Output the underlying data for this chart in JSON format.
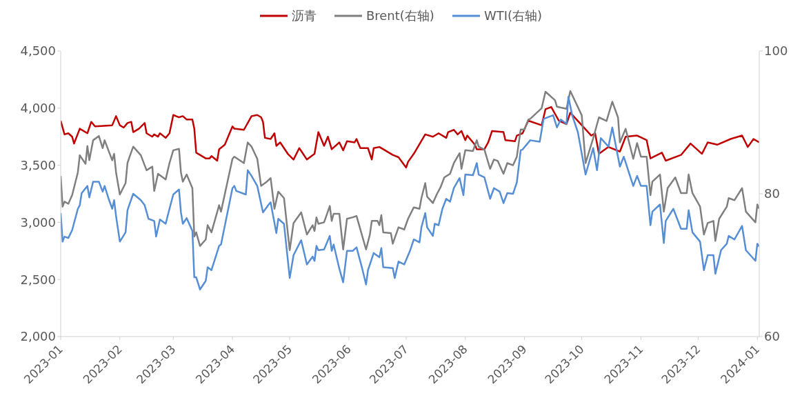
{
  "chart_data": {
    "type": "line",
    "xlim": [
      "2023-01-01",
      "2024-01-02"
    ],
    "xticks": [
      "2023-01",
      "2023-02",
      "2023-03",
      "2023-04",
      "2023-05",
      "2023-06",
      "2023-07",
      "2023-08",
      "2023-09",
      "2023-10",
      "2023-11",
      "2023-12",
      "2024-01"
    ],
    "ylim": [
      2000,
      4500
    ],
    "yticks": [
      {
        "value": 2000,
        "label": "2,000"
      },
      {
        "value": 2500,
        "label": "2,500"
      },
      {
        "value": 3000,
        "label": "3,000"
      },
      {
        "value": 3500,
        "label": "3,500"
      },
      {
        "value": 4000,
        "label": "4,000"
      },
      {
        "value": 4500,
        "label": "4,500"
      }
    ],
    "y2lim": [
      60,
      100
    ],
    "y2ticks": [
      60,
      80,
      100
    ],
    "grid": false,
    "legend": "top",
    "marker": "none",
    "line_style": "solid",
    "series": [
      {
        "name": "沥青",
        "color": "#c00000",
        "x": [
          "2023-01-01",
          "2023-01-03",
          "2023-01-05",
          "2023-01-07",
          "2023-01-08",
          "2023-01-11",
          "2023-01-15",
          "2023-01-17",
          "2023-01-19",
          "2023-01-28",
          "2023-01-30",
          "2023-02-01",
          "2023-02-03",
          "2023-02-05",
          "2023-02-07",
          "2023-02-08",
          "2023-02-11",
          "2023-02-14",
          "2023-02-15",
          "2023-02-18",
          "2023-02-19",
          "2023-02-21",
          "2023-02-22",
          "2023-02-25",
          "2023-02-27",
          "2023-03-01",
          "2023-03-04",
          "2023-03-06",
          "2023-03-08",
          "2023-03-11",
          "2023-03-12",
          "2023-03-13",
          "2023-03-18",
          "2023-03-20",
          "2023-03-21",
          "2023-03-24",
          "2023-03-25",
          "2023-03-28",
          "2023-04-01",
          "2023-04-02",
          "2023-04-07",
          "2023-04-11",
          "2023-04-14",
          "2023-04-16",
          "2023-04-17",
          "2023-04-18",
          "2023-04-21",
          "2023-04-23",
          "2023-04-24",
          "2023-04-26",
          "2023-04-30",
          "2023-05-03",
          "2023-05-06",
          "2023-05-08",
          "2023-05-10",
          "2023-05-14",
          "2023-05-16",
          "2023-05-19",
          "2023-05-21",
          "2023-05-23",
          "2023-05-27",
          "2023-05-29",
          "2023-05-31",
          "2023-06-04",
          "2023-06-05",
          "2023-06-07",
          "2023-06-11",
          "2023-06-13",
          "2023-06-14",
          "2023-06-17",
          "2023-06-24",
          "2023-06-27",
          "2023-07-01",
          "2023-07-02",
          "2023-07-05",
          "2023-07-11",
          "2023-07-15",
          "2023-07-18",
          "2023-07-22",
          "2023-07-23",
          "2023-07-26",
          "2023-07-28",
          "2023-07-30",
          "2023-08-01",
          "2023-08-02",
          "2023-08-06",
          "2023-08-07",
          "2023-08-11",
          "2023-08-13",
          "2023-08-15",
          "2023-08-21",
          "2023-08-22",
          "2023-08-27",
          "2023-08-28",
          "2023-08-31",
          "2023-09-03",
          "2023-09-10",
          "2023-09-12",
          "2023-09-15",
          "2023-09-19",
          "2023-09-23",
          "2023-09-25",
          "2023-10-06",
          "2023-10-08",
          "2023-10-10",
          "2023-10-15",
          "2023-10-21",
          "2023-10-24",
          "2023-10-30",
          "2023-11-04",
          "2023-11-06",
          "2023-11-12",
          "2023-11-14",
          "2023-11-22",
          "2023-11-27",
          "2023-12-03",
          "2023-12-06",
          "2023-12-11",
          "2023-12-18",
          "2023-12-24",
          "2023-12-27",
          "2023-12-30",
          "2024-01-02"
        ],
        "values": [
          3890,
          3770,
          3780,
          3750,
          3690,
          3820,
          3780,
          3880,
          3840,
          3850,
          3930,
          3850,
          3830,
          3870,
          3880,
          3790,
          3820,
          3870,
          3780,
          3750,
          3770,
          3750,
          3780,
          3740,
          3780,
          3940,
          3920,
          3930,
          3900,
          3900,
          3820,
          3610,
          3560,
          3560,
          3580,
          3540,
          3640,
          3680,
          3840,
          3820,
          3810,
          3930,
          3940,
          3920,
          3880,
          3740,
          3730,
          3780,
          3670,
          3700,
          3600,
          3550,
          3650,
          3600,
          3550,
          3600,
          3790,
          3670,
          3750,
          3640,
          3700,
          3630,
          3710,
          3700,
          3730,
          3650,
          3650,
          3550,
          3650,
          3660,
          3590,
          3570,
          3480,
          3530,
          3600,
          3770,
          3750,
          3780,
          3740,
          3790,
          3810,
          3770,
          3800,
          3720,
          3760,
          3680,
          3640,
          3640,
          3700,
          3800,
          3790,
          3720,
          3710,
          3760,
          3780,
          3890,
          3850,
          3990,
          4010,
          3890,
          3860,
          3960,
          3760,
          3780,
          3600,
          3660,
          3620,
          3750,
          3760,
          3720,
          3560,
          3610,
          3540,
          3590,
          3690,
          3600,
          3700,
          3680,
          3730,
          3760,
          3660,
          3730,
          3700
        ]
      },
      {
        "name": "Brent(右轴)",
        "color": "#7f7f7f",
        "axis": "y2",
        "x": [
          "2023-01-01",
          "2023-01-02",
          "2023-01-03",
          "2023-01-05",
          "2023-01-07",
          "2023-01-10",
          "2023-01-11",
          "2023-01-14",
          "2023-01-15",
          "2023-01-16",
          "2023-01-18",
          "2023-01-21",
          "2023-01-23",
          "2023-01-24",
          "2023-01-26",
          "2023-01-28",
          "2023-01-29",
          "2023-01-30",
          "2023-02-01",
          "2023-02-04",
          "2023-02-05",
          "2023-02-06",
          "2023-02-08",
          "2023-02-12",
          "2023-02-15",
          "2023-02-18",
          "2023-02-19",
          "2023-02-21",
          "2023-02-25",
          "2023-02-27",
          "2023-03-01",
          "2023-03-04",
          "2023-03-05",
          "2023-03-06",
          "2023-03-08",
          "2023-03-11",
          "2023-03-12",
          "2023-03-13",
          "2023-03-15",
          "2023-03-18",
          "2023-03-19",
          "2023-03-21",
          "2023-03-25",
          "2023-03-26",
          "2023-04-01",
          "2023-04-02",
          "2023-04-07",
          "2023-04-09",
          "2023-04-11",
          "2023-04-14",
          "2023-04-16",
          "2023-04-19",
          "2023-04-21",
          "2023-04-23",
          "2023-04-25",
          "2023-04-28",
          "2023-05-01",
          "2023-05-03",
          "2023-05-07",
          "2023-05-10",
          "2023-05-13",
          "2023-05-14",
          "2023-05-15",
          "2023-05-16",
          "2023-05-19",
          "2023-05-22",
          "2023-05-23",
          "2023-05-24",
          "2023-05-27",
          "2023-05-29",
          "2023-05-31",
          "2023-06-03",
          "2023-06-05",
          "2023-06-10",
          "2023-06-12",
          "2023-06-13",
          "2023-06-16",
          "2023-06-17",
          "2023-06-18",
          "2023-06-19",
          "2023-06-23",
          "2023-06-24",
          "2023-06-27",
          "2023-06-30",
          "2023-07-02",
          "2023-07-05",
          "2023-07-08",
          "2023-07-09",
          "2023-07-11",
          "2023-07-12",
          "2023-07-15",
          "2023-07-17",
          "2023-07-19",
          "2023-07-21",
          "2023-07-24",
          "2023-07-26",
          "2023-07-29",
          "2023-07-30",
          "2023-08-01",
          "2023-08-05",
          "2023-08-07",
          "2023-08-08",
          "2023-08-11",
          "2023-08-14",
          "2023-08-16",
          "2023-08-18",
          "2023-08-21",
          "2023-08-23",
          "2023-08-26",
          "2023-08-28",
          "2023-08-30",
          "2023-09-01",
          "2023-09-03",
          "2023-09-04",
          "2023-09-10",
          "2023-09-12",
          "2023-09-17",
          "2023-09-18",
          "2023-09-23",
          "2023-09-25",
          "2023-10-01",
          "2023-10-03",
          "2023-10-07",
          "2023-10-10",
          "2023-10-14",
          "2023-10-17",
          "2023-10-20",
          "2023-10-21",
          "2023-10-24",
          "2023-10-28",
          "2023-10-30",
          "2023-11-01",
          "2023-11-04",
          "2023-11-06",
          "2023-11-07",
          "2023-11-11",
          "2023-11-13",
          "2023-11-15",
          "2023-11-19",
          "2023-11-22",
          "2023-11-25",
          "2023-11-26",
          "2023-11-28",
          "2023-12-02",
          "2023-12-04",
          "2023-12-06",
          "2023-12-09",
          "2023-12-10",
          "2023-12-12",
          "2023-12-16",
          "2023-12-17",
          "2023-12-20",
          "2023-12-24",
          "2023-12-26",
          "2023-12-31",
          "2024-01-01",
          "2024-01-02"
        ],
        "values": [
          82.5,
          78.2,
          78.9,
          78.6,
          79.8,
          83.0,
          85.4,
          84.2,
          86.7,
          84.7,
          87.5,
          88.1,
          86.4,
          87.5,
          86.1,
          84.7,
          85.6,
          83.0,
          79.9,
          81.5,
          84.3,
          85.1,
          86.6,
          85.4,
          83.3,
          83.8,
          80.4,
          82.8,
          82.0,
          84.3,
          86.1,
          86.3,
          83.0,
          81.7,
          82.7,
          80.8,
          74.0,
          74.6,
          72.7,
          73.6,
          75.6,
          74.6,
          78.4,
          77.5,
          84.9,
          85.2,
          84.3,
          87.2,
          86.6,
          84.9,
          81.1,
          81.7,
          82.2,
          77.9,
          80.3,
          79.4,
          72.1,
          75.9,
          77.4,
          74.3,
          75.6,
          74.8,
          76.7,
          75.8,
          76.0,
          78.3,
          76.2,
          77.2,
          77.2,
          72.2,
          76.5,
          76.7,
          76.9,
          72.2,
          74.3,
          76.2,
          76.2,
          75.6,
          77.0,
          74.6,
          74.5,
          73.0,
          75.3,
          75.0,
          76.5,
          78.1,
          77.9,
          79.4,
          81.5,
          79.6,
          78.7,
          79.9,
          80.9,
          82.3,
          82.8,
          84.3,
          85.7,
          83.5,
          86.1,
          86.0,
          87.5,
          86.6,
          86.2,
          83.5,
          84.8,
          84.6,
          82.8,
          84.3,
          84.0,
          85.2,
          89.0,
          89.0,
          90.4,
          90.5,
          92.0,
          94.3,
          93.1,
          92.2,
          91.9,
          94.4,
          91.0,
          84.3,
          87.8,
          90.7,
          90.2,
          92.9,
          90.7,
          87.2,
          89.1,
          84.9,
          87.1,
          85.2,
          85.2,
          79.8,
          81.7,
          82.7,
          77.5,
          80.8,
          82.3,
          80.1,
          80.1,
          82.7,
          80.1,
          78.2,
          74.3,
          75.9,
          76.2,
          73.4,
          76.5,
          78.2,
          79.4,
          79.1,
          80.8,
          77.5,
          76.0,
          78.5,
          77.9
        ]
      },
      {
        "name": "WTI(右轴)",
        "color": "#558ed5",
        "axis": "y2",
        "x": [
          "2023-01-01",
          "2023-01-02",
          "2023-01-03",
          "2023-01-05",
          "2023-01-07",
          "2023-01-10",
          "2023-01-11",
          "2023-01-12",
          "2023-01-15",
          "2023-01-16",
          "2023-01-18",
          "2023-01-21",
          "2023-01-23",
          "2023-01-24",
          "2023-01-26",
          "2023-01-28",
          "2023-01-29",
          "2023-01-30",
          "2023-02-01",
          "2023-02-04",
          "2023-02-05",
          "2023-02-06",
          "2023-02-08",
          "2023-02-12",
          "2023-02-14",
          "2023-02-16",
          "2023-02-19",
          "2023-02-20",
          "2023-02-22",
          "2023-02-25",
          "2023-02-27",
          "2023-03-01",
          "2023-03-04",
          "2023-03-05",
          "2023-03-06",
          "2023-03-08",
          "2023-03-11",
          "2023-03-12",
          "2023-03-13",
          "2023-03-15",
          "2023-03-18",
          "2023-03-19",
          "2023-03-21",
          "2023-03-25",
          "2023-03-26",
          "2023-04-01",
          "2023-04-02",
          "2023-04-03",
          "2023-04-08",
          "2023-04-09",
          "2023-04-11",
          "2023-04-14",
          "2023-04-17",
          "2023-04-20",
          "2023-04-21",
          "2023-04-24",
          "2023-04-25",
          "2023-04-28",
          "2023-05-01",
          "2023-05-03",
          "2023-05-07",
          "2023-05-10",
          "2023-05-13",
          "2023-05-14",
          "2023-05-15",
          "2023-05-16",
          "2023-05-19",
          "2023-05-22",
          "2023-05-23",
          "2023-05-24",
          "2023-05-27",
          "2023-05-29",
          "2023-05-31",
          "2023-06-03",
          "2023-06-05",
          "2023-06-08",
          "2023-06-10",
          "2023-06-11",
          "2023-06-13",
          "2023-06-14",
          "2023-06-17",
          "2023-06-18",
          "2023-06-19",
          "2023-06-24",
          "2023-06-25",
          "2023-06-27",
          "2023-06-30",
          "2023-07-03",
          "2023-07-05",
          "2023-07-08",
          "2023-07-09",
          "2023-07-11",
          "2023-07-12",
          "2023-07-15",
          "2023-07-16",
          "2023-07-18",
          "2023-07-20",
          "2023-07-22",
          "2023-07-24",
          "2023-07-26",
          "2023-07-29",
          "2023-07-31",
          "2023-08-01",
          "2023-08-05",
          "2023-08-07",
          "2023-08-08",
          "2023-08-11",
          "2023-08-14",
          "2023-08-16",
          "2023-08-19",
          "2023-08-21",
          "2023-08-23",
          "2023-08-26",
          "2023-08-28",
          "2023-08-30",
          "2023-08-31",
          "2023-09-04",
          "2023-09-09",
          "2023-09-11",
          "2023-09-16",
          "2023-09-18",
          "2023-09-20",
          "2023-09-23",
          "2023-09-24",
          "2023-09-26",
          "2023-09-29",
          "2023-10-03",
          "2023-10-07",
          "2023-10-09",
          "2023-10-11",
          "2023-10-15",
          "2023-10-17",
          "2023-10-21",
          "2023-10-23",
          "2023-10-28",
          "2023-10-30",
          "2023-11-01",
          "2023-11-04",
          "2023-11-06",
          "2023-11-07",
          "2023-11-11",
          "2023-11-13",
          "2023-11-14",
          "2023-11-18",
          "2023-11-22",
          "2023-11-25",
          "2023-11-26",
          "2023-11-28",
          "2023-12-02",
          "2023-12-04",
          "2023-12-06",
          "2023-12-09",
          "2023-12-10",
          "2023-12-13",
          "2023-12-16",
          "2023-12-17",
          "2023-12-20",
          "2023-12-24",
          "2023-12-26",
          "2023-12-31",
          "2024-01-01",
          "2024-01-02"
        ],
        "values": [
          77.3,
          73.3,
          74.0,
          73.8,
          74.9,
          77.9,
          78.4,
          80.1,
          81.1,
          79.5,
          81.7,
          81.7,
          80.3,
          81.1,
          79.4,
          77.9,
          79.1,
          76.9,
          73.3,
          74.6,
          77.7,
          78.5,
          80.0,
          79.1,
          78.4,
          76.5,
          76.2,
          74.0,
          76.4,
          75.8,
          77.9,
          79.9,
          80.6,
          77.4,
          75.8,
          76.6,
          74.8,
          68.3,
          68.3,
          66.6,
          67.8,
          69.7,
          69.3,
          72.7,
          72.9,
          80.8,
          81.1,
          80.4,
          79.9,
          83.3,
          82.5,
          81.1,
          77.4,
          78.5,
          78.8,
          74.5,
          76.5,
          75.8,
          68.2,
          71.4,
          73.5,
          70.1,
          71.2,
          70.6,
          72.7,
          72.1,
          72.2,
          74.1,
          72.0,
          72.9,
          69.5,
          67.6,
          72.0,
          72.0,
          72.5,
          69.5,
          67.3,
          69.3,
          70.9,
          71.7,
          71.1,
          72.4,
          69.7,
          69.6,
          68.2,
          70.5,
          70.1,
          72.0,
          73.6,
          73.2,
          75.3,
          77.3,
          75.3,
          74.1,
          75.8,
          75.6,
          77.9,
          79.3,
          78.9,
          80.8,
          82.2,
          79.8,
          82.7,
          82.6,
          84.3,
          82.7,
          82.3,
          79.3,
          80.8,
          80.3,
          78.7,
          80.1,
          80.0,
          81.6,
          86.1,
          86.2,
          87.5,
          87.3,
          90.5,
          91.0,
          89.3,
          90.4,
          89.8,
          93.6,
          91.0,
          88.6,
          82.7,
          86.4,
          83.3,
          87.8,
          86.6,
          89.3,
          83.8,
          85.2,
          81.1,
          82.5,
          81.1,
          81.1,
          75.6,
          77.5,
          78.5,
          73.1,
          76.2,
          77.9,
          75.1,
          75.1,
          77.7,
          74.6,
          73.3,
          69.3,
          71.4,
          71.4,
          68.8,
          72.1,
          73.0,
          74.1,
          73.6,
          75.5,
          72.1,
          70.6,
          73.0,
          72.6
        ]
      }
    ]
  }
}
